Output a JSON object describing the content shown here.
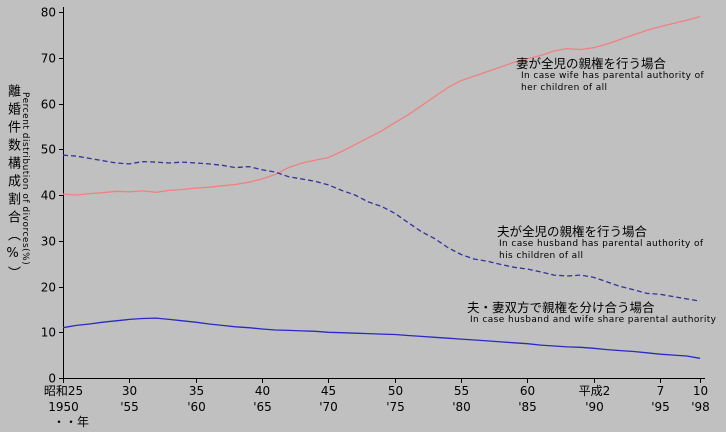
{
  "chart_data": {
    "type": "line",
    "title": "",
    "ylabel_jp": "離婚件数構成割合（%）",
    "ylabel_en": "Percent distribution of divorces(%)",
    "ylim": [
      0,
      80
    ],
    "ytick_step": 10,
    "x_start_year": 1950,
    "x_end_year": 1998,
    "x_axis_note": "・・年",
    "grid": false,
    "legend_position": "inline-annotations",
    "x_ticks": [
      {
        "year": 1950,
        "jp": "昭和25",
        "west": "1950"
      },
      {
        "year": 1955,
        "jp": "30",
        "west": "'55"
      },
      {
        "year": 1960,
        "jp": "35",
        "west": "'60"
      },
      {
        "year": 1965,
        "jp": "40",
        "west": "'65"
      },
      {
        "year": 1970,
        "jp": "45",
        "west": "'70"
      },
      {
        "year": 1975,
        "jp": "50",
        "west": "'75"
      },
      {
        "year": 1980,
        "jp": "55",
        "west": "'80"
      },
      {
        "year": 1985,
        "jp": "60",
        "west": "'85"
      },
      {
        "year": 1990,
        "jp": "平成2",
        "west": "'90"
      },
      {
        "year": 1995,
        "jp": "7",
        "west": "'95"
      },
      {
        "year": 1998,
        "jp": "10",
        "west": "'98"
      }
    ],
    "years": [
      1950,
      1951,
      1952,
      1953,
      1954,
      1955,
      1956,
      1957,
      1958,
      1959,
      1960,
      1961,
      1962,
      1963,
      1964,
      1965,
      1966,
      1967,
      1968,
      1969,
      1970,
      1971,
      1972,
      1973,
      1974,
      1975,
      1976,
      1977,
      1978,
      1979,
      1980,
      1981,
      1982,
      1983,
      1984,
      1985,
      1986,
      1987,
      1988,
      1989,
      1990,
      1991,
      1992,
      1993,
      1994,
      1995,
      1996,
      1997,
      1998
    ],
    "series": [
      {
        "id": "wife",
        "label_jp": "妻が全児の親権を行う場合",
        "label_en": [
          "In case wife has parental authority of",
          "her children of all"
        ],
        "color": "#f28080",
        "dash": null,
        "values": [
          40.2,
          40.0,
          40.3,
          40.5,
          40.8,
          40.7,
          40.9,
          40.6,
          41.0,
          41.2,
          41.5,
          41.7,
          42.0,
          42.3,
          42.8,
          43.5,
          44.5,
          46.0,
          47.0,
          47.6,
          48.2,
          49.5,
          51.0,
          52.5,
          54.0,
          55.8,
          57.5,
          59.5,
          61.5,
          63.5,
          65.0,
          66.0,
          67.0,
          68.0,
          69.0,
          69.8,
          70.5,
          71.5,
          72.0,
          71.8,
          72.2,
          73.0,
          74.0,
          75.0,
          76.0,
          76.8,
          77.5,
          78.2,
          79.0
        ]
      },
      {
        "id": "husband",
        "label_jp": "夫が全児の親権を行う場合",
        "label_en": [
          "In case husband has parental authority of",
          "his children of all"
        ],
        "color": "#333399",
        "dash": "5,3",
        "values": [
          48.7,
          48.5,
          48.0,
          47.5,
          47.0,
          46.8,
          47.3,
          47.2,
          47.0,
          47.2,
          47.0,
          46.8,
          46.5,
          46.0,
          46.2,
          45.5,
          45.0,
          44.0,
          43.5,
          43.0,
          42.2,
          41.0,
          40.0,
          38.5,
          37.5,
          36.0,
          34.0,
          32.0,
          30.5,
          28.5,
          27.0,
          26.0,
          25.5,
          24.8,
          24.2,
          23.8,
          23.2,
          22.5,
          22.3,
          22.5,
          22.0,
          21.0,
          20.0,
          19.3,
          18.5,
          18.3,
          17.8,
          17.3,
          16.8
        ]
      },
      {
        "id": "shared",
        "label_jp": "夫・妻双方で親権を分け合う場合",
        "label_en": [
          "In case husband and wife share parental authority"
        ],
        "color": "#2929c8",
        "dash": null,
        "values": [
          11.0,
          11.5,
          11.8,
          12.2,
          12.5,
          12.8,
          13.0,
          13.1,
          12.8,
          12.5,
          12.2,
          11.8,
          11.5,
          11.2,
          11.0,
          10.7,
          10.5,
          10.4,
          10.3,
          10.2,
          10.0,
          9.9,
          9.8,
          9.7,
          9.6,
          9.5,
          9.3,
          9.1,
          8.9,
          8.7,
          8.5,
          8.3,
          8.1,
          7.9,
          7.7,
          7.5,
          7.2,
          7.0,
          6.8,
          6.7,
          6.5,
          6.2,
          6.0,
          5.8,
          5.5,
          5.2,
          5.0,
          4.8,
          4.3
        ]
      }
    ]
  }
}
